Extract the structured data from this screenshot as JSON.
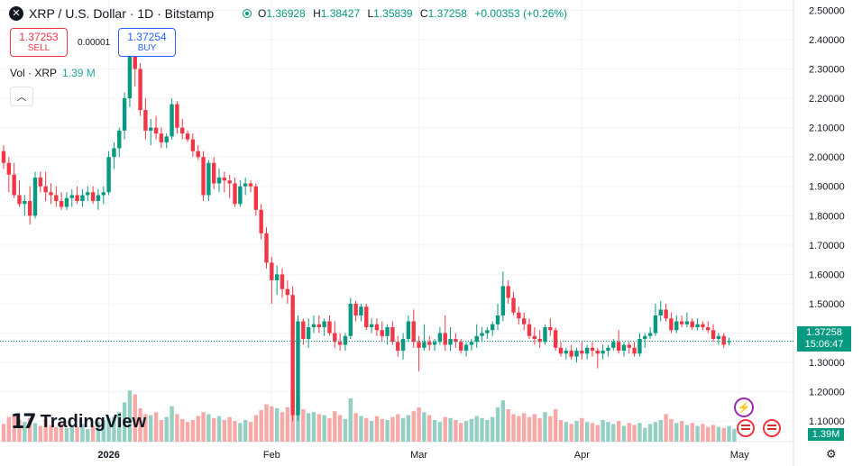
{
  "header": {
    "symbol_icon": "x-xrp-icon",
    "title": "XRP / U.S. Dollar · 1D · Bitstamp",
    "ohlc": [
      {
        "key": "O",
        "value": "1.36928"
      },
      {
        "key": "H",
        "value": "1.38427"
      },
      {
        "key": "L",
        "value": "1.35839"
      },
      {
        "key": "C",
        "value": "1.37258"
      }
    ],
    "change": "+0.00353 (+0.26%)"
  },
  "trade": {
    "sell_price": "1.37253",
    "sell_label": "SELL",
    "spread": "0.00001",
    "buy_price": "1.37254",
    "buy_label": "BUY"
  },
  "volume_legend": {
    "label": "Vol · XRP",
    "value": "1.39 M",
    "collapse_icon": "chevron-up-icon"
  },
  "logo": {
    "mark": "17",
    "text": "TradingView"
  },
  "price_tag": {
    "price": "1.37258",
    "countdown": "15:06:47"
  },
  "volume_tag": "1.39M",
  "badges": {
    "bolt_icon": "lightning-icon",
    "flag_icon": "us-flag-icon"
  },
  "colors": {
    "up": "#089981",
    "down": "#f23645",
    "vol_up": "#94cfc4",
    "vol_down": "#f7a9a7",
    "grid": "#f0f3fa"
  },
  "chart_data": {
    "type": "candlestick",
    "y_ticks": [
      "2.50000",
      "2.40000",
      "2.30000",
      "2.20000",
      "2.10000",
      "2.00000",
      "1.90000",
      "1.80000",
      "1.70000",
      "1.60000",
      "1.50000",
      "1.40000",
      "1.30000",
      "1.20000",
      "1.10000"
    ],
    "x_ticks": [
      {
        "label": "2026",
        "index": 20
      },
      {
        "label": "Feb",
        "index": 51
      },
      {
        "label": "Mar",
        "index": 79
      },
      {
        "label": "Apr",
        "index": 110
      },
      {
        "label": "May",
        "index": 140
      }
    ],
    "ylim": [
      1.03,
      2.535
    ],
    "last_close": 1.37258,
    "ohlc": [
      [
        2.02,
        2.04,
        1.96,
        1.98
      ],
      [
        1.98,
        2.0,
        1.88,
        1.94
      ],
      [
        1.94,
        1.98,
        1.86,
        1.87
      ],
      [
        1.87,
        1.92,
        1.83,
        1.84
      ],
      [
        1.84,
        1.87,
        1.8,
        1.85
      ],
      [
        1.85,
        1.9,
        1.77,
        1.8
      ],
      [
        1.8,
        1.95,
        1.79,
        1.93
      ],
      [
        1.93,
        1.95,
        1.88,
        1.9
      ],
      [
        1.9,
        1.95,
        1.85,
        1.88
      ],
      [
        1.88,
        1.91,
        1.84,
        1.87
      ],
      [
        1.87,
        1.9,
        1.83,
        1.85
      ],
      [
        1.85,
        1.88,
        1.82,
        1.83
      ],
      [
        1.83,
        1.88,
        1.82,
        1.86
      ],
      [
        1.86,
        1.89,
        1.83,
        1.87
      ],
      [
        1.87,
        1.9,
        1.84,
        1.85
      ],
      [
        1.85,
        1.89,
        1.83,
        1.87
      ],
      [
        1.87,
        1.9,
        1.85,
        1.88
      ],
      [
        1.88,
        1.9,
        1.84,
        1.85
      ],
      [
        1.85,
        1.89,
        1.82,
        1.87
      ],
      [
        1.87,
        1.9,
        1.84,
        1.88
      ],
      [
        1.88,
        2.02,
        1.87,
        2.0
      ],
      [
        2.0,
        2.05,
        1.96,
        2.03
      ],
      [
        2.03,
        2.1,
        2.0,
        2.09
      ],
      [
        2.09,
        2.22,
        2.06,
        2.2
      ],
      [
        2.2,
        2.38,
        2.17,
        2.35
      ],
      [
        2.35,
        2.37,
        2.24,
        2.3
      ],
      [
        2.3,
        2.32,
        2.14,
        2.16
      ],
      [
        2.16,
        2.2,
        2.06,
        2.09
      ],
      [
        2.09,
        2.13,
        2.04,
        2.1
      ],
      [
        2.1,
        2.14,
        2.06,
        2.08
      ],
      [
        2.08,
        2.1,
        2.03,
        2.05
      ],
      [
        2.05,
        2.08,
        2.03,
        2.07
      ],
      [
        2.07,
        2.2,
        2.06,
        2.18
      ],
      [
        2.18,
        2.19,
        2.08,
        2.1
      ],
      [
        2.1,
        2.13,
        2.06,
        2.08
      ],
      [
        2.08,
        2.09,
        2.05,
        2.06
      ],
      [
        2.06,
        2.08,
        2.0,
        2.02
      ],
      [
        2.02,
        2.04,
        1.99,
        2.0
      ],
      [
        2.0,
        2.02,
        1.85,
        1.87
      ],
      [
        1.87,
        1.99,
        1.85,
        1.98
      ],
      [
        1.98,
        2.0,
        1.89,
        1.91
      ],
      [
        1.91,
        1.96,
        1.88,
        1.93
      ],
      [
        1.93,
        1.95,
        1.88,
        1.92
      ],
      [
        1.92,
        1.94,
        1.86,
        1.91
      ],
      [
        1.91,
        1.93,
        1.83,
        1.84
      ],
      [
        1.84,
        1.92,
        1.83,
        1.9
      ],
      [
        1.9,
        1.93,
        1.87,
        1.91
      ],
      [
        1.91,
        1.92,
        1.88,
        1.9
      ],
      [
        1.9,
        1.91,
        1.8,
        1.82
      ],
      [
        1.82,
        1.84,
        1.72,
        1.74
      ],
      [
        1.74,
        1.76,
        1.62,
        1.64
      ],
      [
        1.64,
        1.66,
        1.5,
        1.58
      ],
      [
        1.58,
        1.63,
        1.53,
        1.6
      ],
      [
        1.6,
        1.62,
        1.52,
        1.55
      ],
      [
        1.55,
        1.58,
        1.5,
        1.53
      ],
      [
        1.53,
        1.56,
        1.1,
        1.12
      ],
      [
        1.12,
        1.46,
        1.1,
        1.44
      ],
      [
        1.44,
        1.45,
        1.36,
        1.38
      ],
      [
        1.38,
        1.45,
        1.35,
        1.42
      ],
      [
        1.42,
        1.46,
        1.4,
        1.43
      ],
      [
        1.43,
        1.46,
        1.4,
        1.42
      ],
      [
        1.42,
        1.45,
        1.39,
        1.44
      ],
      [
        1.44,
        1.46,
        1.39,
        1.4
      ],
      [
        1.4,
        1.44,
        1.35,
        1.37
      ],
      [
        1.37,
        1.4,
        1.34,
        1.36
      ],
      [
        1.36,
        1.4,
        1.34,
        1.39
      ],
      [
        1.39,
        1.52,
        1.38,
        1.5
      ],
      [
        1.5,
        1.51,
        1.44,
        1.46
      ],
      [
        1.46,
        1.5,
        1.44,
        1.49
      ],
      [
        1.49,
        1.5,
        1.41,
        1.42
      ],
      [
        1.42,
        1.45,
        1.4,
        1.43
      ],
      [
        1.43,
        1.45,
        1.39,
        1.41
      ],
      [
        1.41,
        1.44,
        1.37,
        1.39
      ],
      [
        1.39,
        1.43,
        1.36,
        1.42
      ],
      [
        1.42,
        1.44,
        1.36,
        1.37
      ],
      [
        1.37,
        1.39,
        1.32,
        1.34
      ],
      [
        1.34,
        1.4,
        1.31,
        1.38
      ],
      [
        1.38,
        1.46,
        1.37,
        1.44
      ],
      [
        1.44,
        1.48,
        1.35,
        1.37
      ],
      [
        1.37,
        1.39,
        1.27,
        1.35
      ],
      [
        1.35,
        1.43,
        1.34,
        1.37
      ],
      [
        1.37,
        1.39,
        1.34,
        1.36
      ],
      [
        1.36,
        1.38,
        1.34,
        1.37
      ],
      [
        1.37,
        1.42,
        1.36,
        1.4
      ],
      [
        1.4,
        1.46,
        1.34,
        1.36
      ],
      [
        1.36,
        1.42,
        1.34,
        1.38
      ],
      [
        1.38,
        1.4,
        1.35,
        1.37
      ],
      [
        1.37,
        1.38,
        1.33,
        1.34
      ],
      [
        1.34,
        1.37,
        1.32,
        1.36
      ],
      [
        1.36,
        1.38,
        1.34,
        1.37
      ],
      [
        1.37,
        1.43,
        1.35,
        1.39
      ],
      [
        1.39,
        1.42,
        1.37,
        1.4
      ],
      [
        1.4,
        1.42,
        1.38,
        1.41
      ],
      [
        1.41,
        1.44,
        1.39,
        1.43
      ],
      [
        1.43,
        1.5,
        1.41,
        1.46
      ],
      [
        1.46,
        1.61,
        1.44,
        1.56
      ],
      [
        1.56,
        1.58,
        1.5,
        1.52
      ],
      [
        1.52,
        1.54,
        1.46,
        1.47
      ],
      [
        1.47,
        1.49,
        1.43,
        1.45
      ],
      [
        1.45,
        1.47,
        1.41,
        1.43
      ],
      [
        1.43,
        1.45,
        1.38,
        1.39
      ],
      [
        1.39,
        1.42,
        1.36,
        1.38
      ],
      [
        1.38,
        1.41,
        1.35,
        1.37
      ],
      [
        1.37,
        1.43,
        1.36,
        1.42
      ],
      [
        1.42,
        1.45,
        1.39,
        1.41
      ],
      [
        1.41,
        1.42,
        1.34,
        1.35
      ],
      [
        1.35,
        1.37,
        1.32,
        1.33
      ],
      [
        1.33,
        1.35,
        1.31,
        1.34
      ],
      [
        1.34,
        1.36,
        1.31,
        1.32
      ],
      [
        1.32,
        1.35,
        1.3,
        1.34
      ],
      [
        1.34,
        1.37,
        1.31,
        1.33
      ],
      [
        1.33,
        1.36,
        1.31,
        1.35
      ],
      [
        1.35,
        1.37,
        1.32,
        1.34
      ],
      [
        1.34,
        1.35,
        1.28,
        1.33
      ],
      [
        1.33,
        1.36,
        1.31,
        1.34
      ],
      [
        1.34,
        1.36,
        1.32,
        1.35
      ],
      [
        1.35,
        1.38,
        1.34,
        1.37
      ],
      [
        1.37,
        1.41,
        1.33,
        1.34
      ],
      [
        1.34,
        1.37,
        1.32,
        1.36
      ],
      [
        1.36,
        1.37,
        1.33,
        1.35
      ],
      [
        1.35,
        1.37,
        1.32,
        1.33
      ],
      [
        1.33,
        1.4,
        1.32,
        1.38
      ],
      [
        1.38,
        1.4,
        1.35,
        1.39
      ],
      [
        1.39,
        1.42,
        1.38,
        1.4
      ],
      [
        1.4,
        1.5,
        1.39,
        1.46
      ],
      [
        1.46,
        1.51,
        1.44,
        1.48
      ],
      [
        1.48,
        1.5,
        1.44,
        1.45
      ],
      [
        1.45,
        1.47,
        1.4,
        1.41
      ],
      [
        1.41,
        1.46,
        1.4,
        1.44
      ],
      [
        1.44,
        1.46,
        1.42,
        1.43
      ],
      [
        1.43,
        1.47,
        1.42,
        1.44
      ],
      [
        1.44,
        1.45,
        1.41,
        1.42
      ],
      [
        1.42,
        1.45,
        1.41,
        1.43
      ],
      [
        1.43,
        1.44,
        1.41,
        1.42
      ],
      [
        1.42,
        1.44,
        1.4,
        1.41
      ],
      [
        1.41,
        1.43,
        1.37,
        1.38
      ],
      [
        1.38,
        1.4,
        1.36,
        1.39
      ],
      [
        1.39,
        1.4,
        1.35,
        1.36
      ],
      [
        1.369,
        1.384,
        1.358,
        1.3726
      ]
    ],
    "volume": [
      18,
      25,
      28,
      22,
      20,
      24,
      19,
      16,
      23,
      17,
      15,
      19,
      14,
      17,
      15,
      18,
      13,
      16,
      20,
      22,
      24,
      25,
      30,
      40,
      52,
      48,
      34,
      28,
      27,
      30,
      22,
      25,
      36,
      28,
      23,
      20,
      22,
      26,
      30,
      28,
      24,
      26,
      22,
      25,
      21,
      19,
      22,
      20,
      27,
      32,
      38,
      36,
      34,
      30,
      35,
      55,
      40,
      33,
      29,
      30,
      28,
      27,
      24,
      31,
      27,
      23,
      44,
      29,
      26,
      24,
      21,
      26,
      23,
      22,
      25,
      28,
      24,
      27,
      31,
      35,
      30,
      27,
      22,
      20,
      25,
      24,
      22,
      19,
      21,
      23,
      26,
      24,
      22,
      25,
      35,
      42,
      33,
      28,
      26,
      29,
      25,
      28,
      24,
      30,
      26,
      33,
      22,
      20,
      18,
      21,
      24,
      20,
      19,
      17,
      22,
      20,
      18,
      21,
      16,
      19,
      17,
      19,
      14,
      18,
      20,
      22,
      28,
      23,
      19,
      21,
      17,
      19,
      16,
      18,
      15,
      17,
      15,
      14,
      16,
      13
    ]
  }
}
